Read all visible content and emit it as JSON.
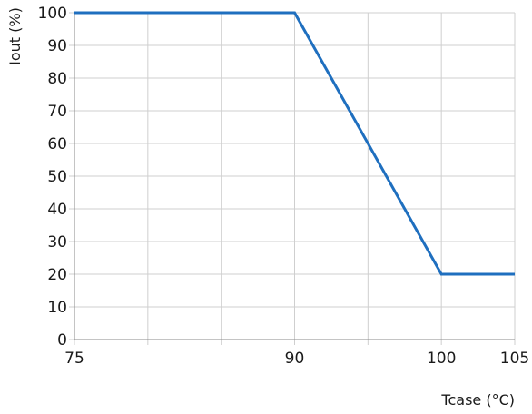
{
  "chart_data": {
    "type": "line",
    "title": "",
    "xlabel": "Tcase (°C)",
    "ylabel": "Iout (%)",
    "xlim": [
      75,
      105
    ],
    "ylim": [
      0,
      100
    ],
    "x_ticks": [
      75,
      90,
      100,
      105
    ],
    "x_gridlines": [
      75,
      80,
      85,
      90,
      95,
      100,
      105
    ],
    "y_ticks": [
      0,
      10,
      20,
      30,
      40,
      50,
      60,
      70,
      80,
      90,
      100
    ],
    "grid": true,
    "legend": "none",
    "series": [
      {
        "color": "#1f6fbf",
        "x": [
          75,
          90,
          100,
          105
        ],
        "y": [
          100,
          100,
          20,
          20
        ]
      }
    ]
  }
}
